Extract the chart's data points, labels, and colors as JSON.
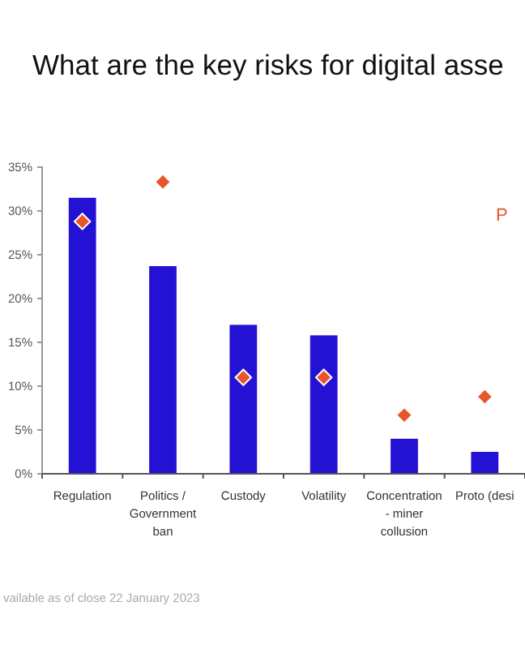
{
  "chart_data": {
    "type": "bar",
    "title": "What are the key risks for digital asse",
    "categories": [
      "Regulation",
      "Politics / Government ban",
      "Custody",
      "Volatility",
      "Concentration - miner collusion",
      "Proto (desi"
    ],
    "series": [
      {
        "color": "#2412d4",
        "values": [
          31.5,
          23.7,
          17.0,
          15.8,
          4.0,
          2.5
        ]
      },
      {
        "type": "scatter",
        "color": "#e8552a",
        "values": [
          28.8,
          33.3,
          11.0,
          11.0,
          6.7,
          8.8
        ]
      }
    ],
    "ylim": [
      0,
      35
    ],
    "yticks": [
      {
        "value": 0,
        "label": "0%"
      },
      {
        "value": 5,
        "label": "5%"
      },
      {
        "value": 10,
        "label": "10%"
      },
      {
        "value": 15,
        "label": "15%"
      },
      {
        "value": 20,
        "label": "20%"
      },
      {
        "value": 25,
        "label": "25%"
      },
      {
        "value": 30,
        "label": "30%"
      },
      {
        "value": 35,
        "label": "35%"
      }
    ],
    "marker": "diamond",
    "grid": false,
    "annotations": [
      "P",
      "vailable as of close 22 January 2023"
    ]
  }
}
